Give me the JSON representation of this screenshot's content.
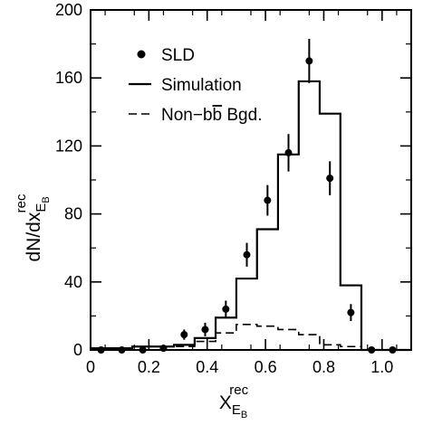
{
  "chart_data": {
    "type": "line",
    "xlim": [
      0,
      1.1
    ],
    "ylim": [
      0,
      200
    ],
    "x_ticks": [
      0,
      0.2,
      0.4,
      0.6,
      0.8,
      1.0
    ],
    "x_tick_labels": [
      "0",
      "0.2",
      "0.4",
      "0.6",
      "0.8",
      "1.0"
    ],
    "y_ticks": [
      0,
      40,
      80,
      120,
      160,
      200
    ],
    "y_tick_labels": [
      "0",
      "40",
      "80",
      "120",
      "160",
      "200"
    ],
    "xlabel": {
      "main": "X",
      "sub": "E",
      "subsub": "B",
      "sup": "rec"
    },
    "ylabel": {
      "main": "dN/dx",
      "sub": "E",
      "subsub": "B",
      "sup": "rec"
    },
    "legend_position": "top-left",
    "legend": {
      "data": "SLD",
      "simulation": "Simulation",
      "background_prefix": "Non−b",
      "background_bbar": "b",
      "background_suffix": " Bgd."
    },
    "series": [
      {
        "name": "SLD",
        "style": "points-with-errors",
        "x": [
          0.036,
          0.107,
          0.179,
          0.25,
          0.321,
          0.393,
          0.464,
          0.536,
          0.607,
          0.679,
          0.75,
          0.821,
          0.893,
          0.964,
          1.036
        ],
        "y": [
          0,
          0,
          0,
          1,
          9,
          12,
          24,
          56,
          88,
          116,
          170,
          101,
          22,
          0,
          0
        ],
        "err": [
          0,
          0,
          0,
          1,
          3,
          4,
          5,
          7,
          9,
          11,
          13,
          10,
          5,
          0,
          0
        ]
      },
      {
        "name": "Simulation",
        "style": "histogram-solid",
        "edges": [
          0,
          0.143,
          0.286,
          0.357,
          0.429,
          0.5,
          0.571,
          0.643,
          0.714,
          0.786,
          0.857,
          0.929,
          1.1
        ],
        "values": [
          1,
          2,
          3,
          7,
          19,
          42,
          71,
          115,
          158,
          139,
          38,
          0
        ]
      },
      {
        "name": "Non-bb̅ Bgd.",
        "style": "histogram-dashed",
        "edges": [
          0,
          0.286,
          0.357,
          0.429,
          0.5,
          0.571,
          0.643,
          0.714,
          0.786,
          0.857,
          0.929,
          1.1
        ],
        "values": [
          0,
          2,
          5,
          10,
          15,
          14,
          12,
          9,
          3,
          2,
          0
        ]
      }
    ]
  }
}
